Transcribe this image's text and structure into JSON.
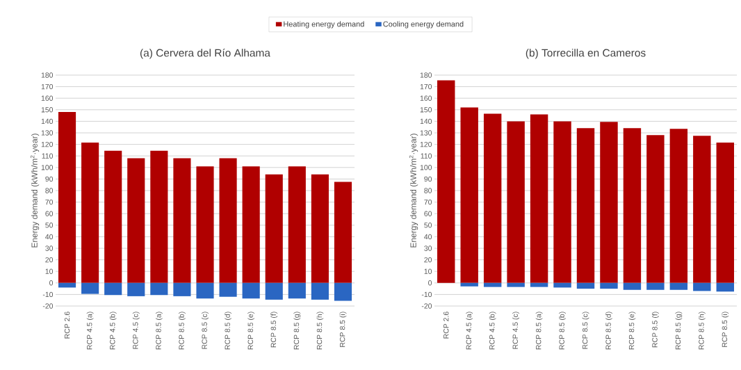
{
  "chart_data": [
    {
      "type": "bar",
      "title": "(a) Cervera del Río Alhama",
      "ylabel": "Energy demand (kWh/m$^{2}$·year)",
      "categories": [
        "RCP 2.6",
        "RCP 4.5 (a)",
        "RCP 4.5 (b)",
        "RCP 4.5 (c)",
        "RCP 8.5 (a)",
        "RCP 8.5 (b)",
        "RCP 8.5 (c)",
        "RCP 8.5 (d)",
        "RCP 8.5 (e)",
        "RCP 8.5 (f)",
        "RCP 8.5 (g)",
        "RCP 8.5 (h)",
        "RCP 8.5 (i)"
      ],
      "series": [
        {
          "name": "Heating energy demand",
          "color": "#b00000",
          "values": [
            148,
            121.5,
            114.5,
            108,
            114.5,
            108,
            101,
            108,
            101,
            94,
            101,
            94,
            87.5
          ]
        },
        {
          "name": "Cooling energy demand",
          "color": "#2a66c2",
          "values": [
            -4,
            -9.5,
            -10.5,
            -11.5,
            -10.5,
            -11.5,
            -13.5,
            -12,
            -13.5,
            -14.5,
            -13.5,
            -14.5,
            -15.5
          ]
        }
      ],
      "stacked": true,
      "ylim": [
        -20,
        180
      ],
      "yticks": [
        -20,
        -10,
        0,
        10,
        20,
        30,
        40,
        50,
        60,
        70,
        80,
        90,
        100,
        110,
        120,
        130,
        140,
        150,
        160,
        170,
        180
      ],
      "grid": "y",
      "legend": "top"
    },
    {
      "type": "bar",
      "title": "(b) Torrecilla en Cameros",
      "ylabel": "Energy demand (kWh/m$^{2}$·year)",
      "categories": [
        "RCP 2.6",
        "RCP 4.5 (a)",
        "RCP 4.5 (b)",
        "RCP 4.5 (c)",
        "RCP 8.5 (a)",
        "RCP 8.5 (b)",
        "RCP 8.5 (c)",
        "RCP 8.5 (d)",
        "RCP 8.5 (e)",
        "RCP 8.5 (f)",
        "RCP 8.5 (g)",
        "RCP 8.5 (h)",
        "RCP 8.5 (i)"
      ],
      "series": [
        {
          "color": "#b00000",
          "values": [
            175.5,
            152,
            146.5,
            140,
            146,
            140,
            134,
            139.5,
            134,
            128,
            133.5,
            127.5,
            121.5
          ]
        },
        {
          "color": "#2a66c2",
          "values": [
            0,
            -3,
            -3.5,
            -3.5,
            -3.5,
            -4,
            -5,
            -5,
            -6,
            -6,
            -6,
            -7,
            -7.5
          ]
        }
      ],
      "stacked": true,
      "ylim": [
        -20,
        180
      ],
      "yticks": [
        -20,
        -10,
        0,
        10,
        20,
        30,
        40,
        50,
        60,
        70,
        80,
        90,
        100,
        110,
        120,
        130,
        140,
        150,
        160,
        170,
        180
      ],
      "grid": "y"
    }
  ]
}
